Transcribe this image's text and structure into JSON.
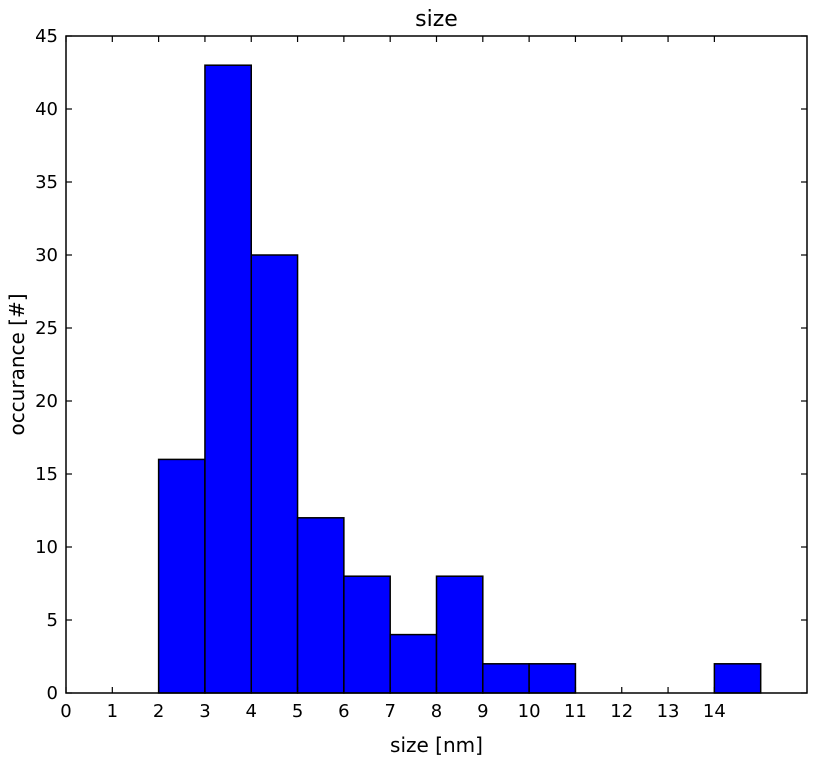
{
  "chart_data": {
    "type": "bar",
    "title": "size",
    "xlabel": "size [nm]",
    "ylabel": "occurance [#]",
    "xlim": [
      0,
      16
    ],
    "ylim": [
      0,
      45
    ],
    "xticks": [
      0,
      1,
      2,
      3,
      4,
      5,
      6,
      7,
      8,
      9,
      10,
      11,
      12,
      13,
      14
    ],
    "yticks": [
      0,
      5,
      10,
      15,
      20,
      25,
      30,
      35,
      40,
      45
    ],
    "bins": [
      {
        "x0": 2,
        "x1": 3,
        "value": 16
      },
      {
        "x0": 3,
        "x1": 4,
        "value": 43
      },
      {
        "x0": 4,
        "x1": 5,
        "value": 30
      },
      {
        "x0": 5,
        "x1": 6,
        "value": 12
      },
      {
        "x0": 6,
        "x1": 7,
        "value": 8
      },
      {
        "x0": 7,
        "x1": 8,
        "value": 4
      },
      {
        "x0": 8,
        "x1": 9,
        "value": 8
      },
      {
        "x0": 9,
        "x1": 10,
        "value": 2
      },
      {
        "x0": 10,
        "x1": 11,
        "value": 2
      },
      {
        "x0": 14,
        "x1": 15,
        "value": 2
      }
    ],
    "bar_color": "#0000ff",
    "edge_color": "#000000",
    "grid": false
  }
}
